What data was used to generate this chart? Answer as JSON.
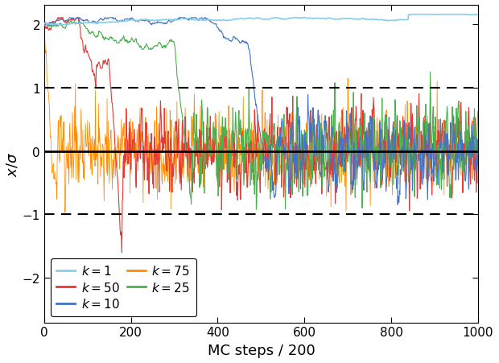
{
  "xlabel": "MC steps / 200",
  "ylabel": "$x/\\sigma$",
  "xlim": [
    0,
    1000
  ],
  "ylim": [
    -2.7,
    2.3
  ],
  "yticks": [
    -2,
    -1,
    0,
    1,
    2
  ],
  "colors": {
    "k1": "#87CEEB",
    "k10": "#4472C4",
    "k25": "#4CAF50",
    "k50": "#E53935",
    "k75": "#FF8C00"
  },
  "n_steps": 1001
}
